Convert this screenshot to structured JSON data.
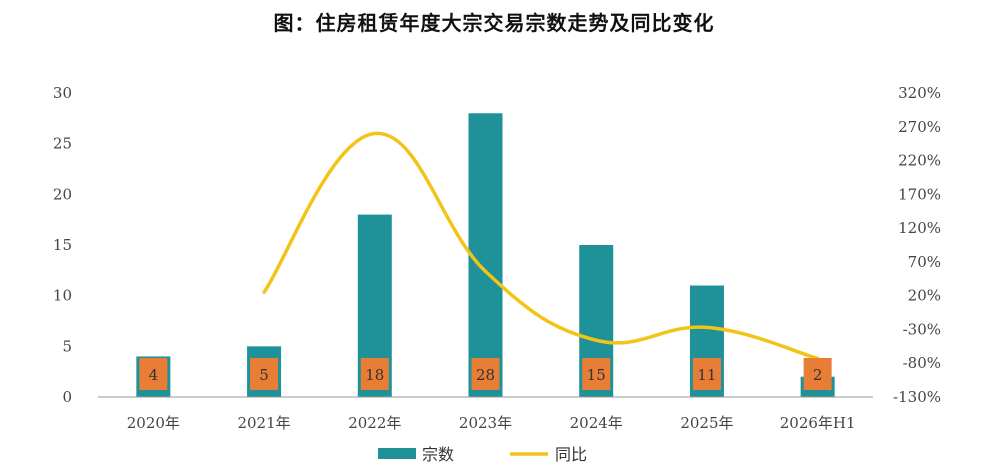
{
  "chart_data": {
    "type": "bar",
    "title": "图：住房租赁年度大宗交易宗数走势及同比变化",
    "categories": [
      "2020年",
      "2021年",
      "2022年",
      "2023年",
      "2024年",
      "2025年",
      "2026年H1"
    ],
    "series": [
      {
        "name": "宗数",
        "type": "bar",
        "axis": "left",
        "values": [
          4,
          5,
          18,
          28,
          15,
          11,
          2
        ]
      },
      {
        "name": "同比",
        "type": "line",
        "axis": "right",
        "values": [
          null,
          25,
          260,
          56,
          -46,
          -27,
          -73
        ]
      }
    ],
    "y_left": {
      "ylim": [
        0,
        30
      ],
      "ticks": [
        "0",
        "5",
        "10",
        "15",
        "20",
        "25",
        "30"
      ]
    },
    "y_right": {
      "ylim": [
        -130,
        320
      ],
      "ticks": [
        "-130%",
        "-80%",
        "-30%",
        "20%",
        "70%",
        "120%",
        "170%",
        "220%",
        "270%",
        "320%"
      ]
    },
    "data_labels": [
      "4",
      "5",
      "18",
      "28",
      "15",
      "11",
      "2"
    ],
    "legend": {
      "position": "bottom",
      "items": [
        "宗数",
        "同比"
      ]
    },
    "colors": {
      "bar": "#1E9199",
      "line": "#F2C418",
      "label_box": "#E87E35",
      "axis": "#999999"
    },
    "grid": false
  }
}
